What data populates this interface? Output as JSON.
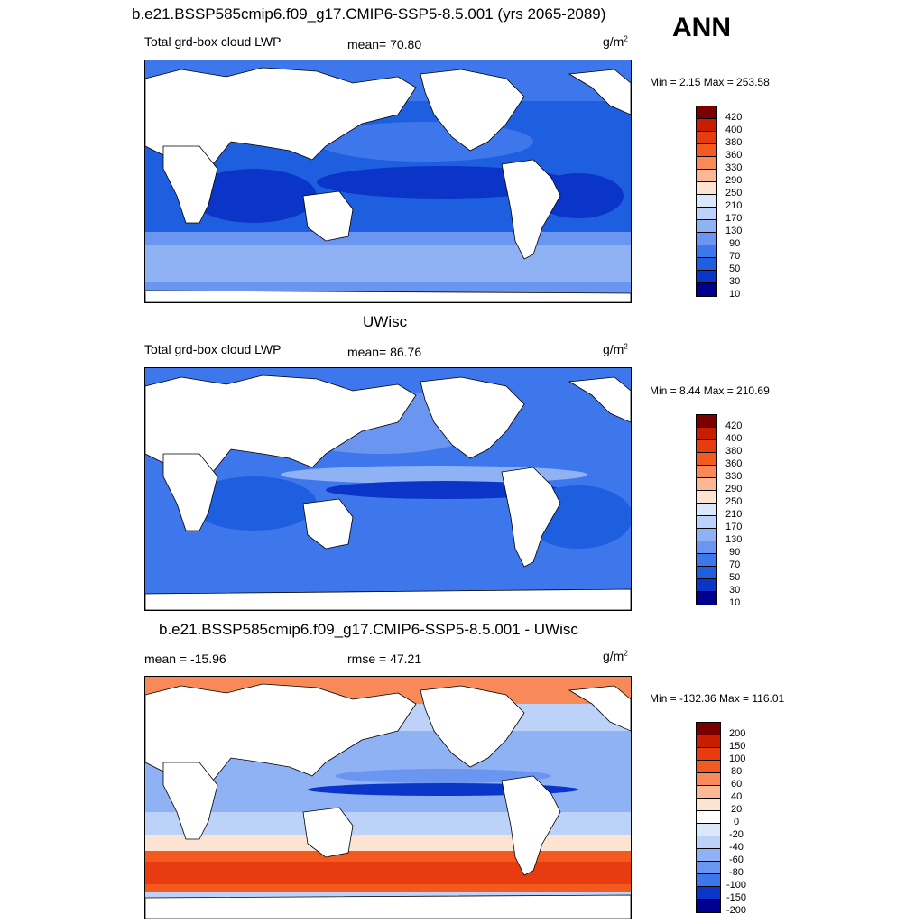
{
  "header": {
    "title": "b.e21.BSSP585cmip6.f09_g17.CMIP6-SSP5-8.5.001 (yrs 2065-2089)",
    "season": "ANN"
  },
  "panels": [
    {
      "label": "Total grd-box cloud LWP",
      "stat": "mean=  70.80",
      "units": "g/m",
      "units_exp": "2",
      "minmax": "Min =   2.15 Max = 253.58",
      "background_color": "#0b35c8",
      "colorbar": [
        "420",
        "400",
        "380",
        "360",
        "330",
        "290",
        "250",
        "210",
        "170",
        "130",
        "90",
        "70",
        "50",
        "30",
        "10"
      ]
    },
    {
      "title": "UWisc",
      "label": "Total grd-box cloud LWP",
      "stat": "mean=  86.76",
      "units": "g/m",
      "units_exp": "2",
      "minmax": "Min =   8.44 Max = 210.69",
      "background_color": "#2e6ce8",
      "colorbar": [
        "420",
        "400",
        "380",
        "360",
        "330",
        "290",
        "250",
        "210",
        "170",
        "130",
        "90",
        "70",
        "50",
        "30",
        "10"
      ]
    },
    {
      "title": "b.e21.BSSP585cmip6.f09_g17.CMIP6-SSP5-8.5.001 - UWisc",
      "label": "mean = -15.96",
      "stat": "rmse =  47.21",
      "units": "g/m",
      "units_exp": "2",
      "minmax": "Min = -132.36 Max = 116.01",
      "background_color": "#8fb2f5",
      "colorbar": [
        "200",
        "150",
        "100",
        "80",
        "60",
        "40",
        "20",
        "0",
        "-20",
        "-40",
        "-60",
        "-80",
        "-100",
        "-150",
        "-200"
      ]
    }
  ],
  "colors": {
    "abs_scale": [
      "#7a0000",
      "#c81e00",
      "#e83c10",
      "#f25a20",
      "#f88a5a",
      "#fbb896",
      "#fde4d2",
      "#dbe8fb",
      "#bcd2f8",
      "#8fb2f5",
      "#6a96f2",
      "#3e76ec",
      "#1e5fe0",
      "#0b35c8",
      "#000090"
    ],
    "diff_scale": [
      "#7a0000",
      "#c81e00",
      "#e83c10",
      "#f25a20",
      "#f88a5a",
      "#fbb896",
      "#fde4d2",
      "#ffffff",
      "#dbe8fb",
      "#bcd2f8",
      "#8fb2f5",
      "#6a96f2",
      "#3e76ec",
      "#0b35c8",
      "#000090"
    ],
    "land": "#ffffff"
  }
}
